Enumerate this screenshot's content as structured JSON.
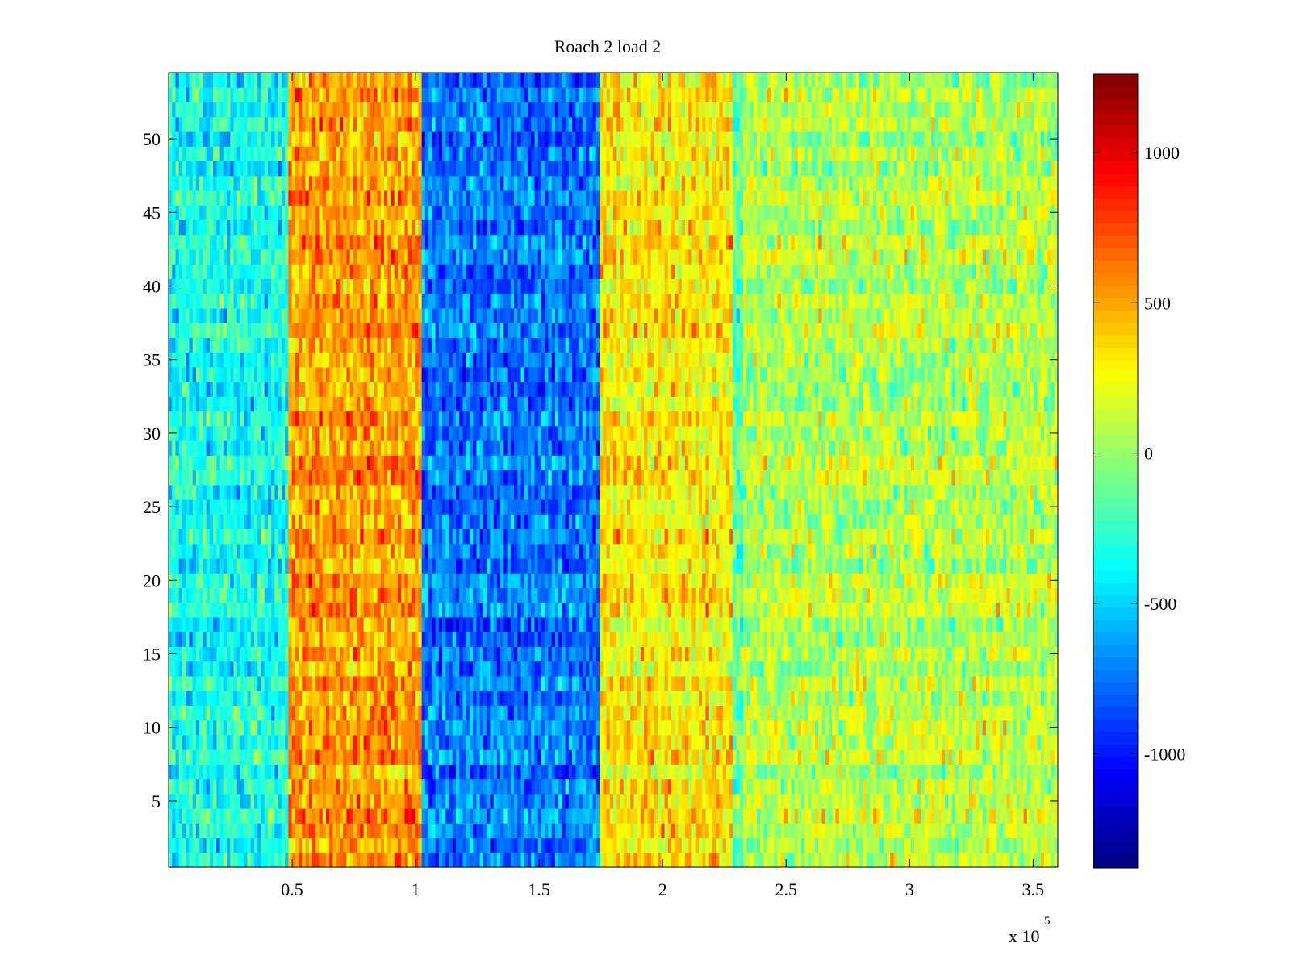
{
  "chart_data": {
    "type": "heatmap",
    "title": "Roach 2 load 2",
    "xlabel": "",
    "ylabel": "",
    "x_exponent_label": "x 10",
    "x_exponent_power": "5",
    "xlim": [
      0,
      360000
    ],
    "ylim": [
      0.5,
      54.5
    ],
    "x_ticks": [
      {
        "value": 50000,
        "label": "0.5"
      },
      {
        "value": 100000,
        "label": "1"
      },
      {
        "value": 150000,
        "label": "1.5"
      },
      {
        "value": 200000,
        "label": "2"
      },
      {
        "value": 250000,
        "label": "2.5"
      },
      {
        "value": 300000,
        "label": "3"
      },
      {
        "value": 350000,
        "label": "3.5"
      }
    ],
    "y_ticks": [
      {
        "value": 5,
        "label": "5"
      },
      {
        "value": 10,
        "label": "10"
      },
      {
        "value": 15,
        "label": "15"
      },
      {
        "value": 20,
        "label": "20"
      },
      {
        "value": 25,
        "label": "25"
      },
      {
        "value": 30,
        "label": "30"
      },
      {
        "value": 35,
        "label": "35"
      },
      {
        "value": 40,
        "label": "40"
      },
      {
        "value": 45,
        "label": "45"
      },
      {
        "value": 50,
        "label": "50"
      }
    ],
    "rows": 54,
    "colormap": "jet",
    "clim": [
      -1380,
      1260
    ],
    "colorbar": {
      "ticks": [
        {
          "value": 1000,
          "label": "1000"
        },
        {
          "value": 500,
          "label": "500"
        },
        {
          "value": 0,
          "label": "0"
        },
        {
          "value": -500,
          "label": "-500"
        },
        {
          "value": -1000,
          "label": "-1000"
        }
      ]
    },
    "bands": [
      {
        "x_start": 0,
        "x_end": 48000,
        "mean": -350
      },
      {
        "x_start": 48000,
        "x_end": 102000,
        "mean": 520
      },
      {
        "x_start": 102000,
        "x_end": 175000,
        "mean": -750
      },
      {
        "x_start": 175000,
        "x_end": 228000,
        "mean": 300
      },
      {
        "x_start": 228000,
        "x_end": 232000,
        "mean": -150
      },
      {
        "x_start": 232000,
        "x_end": 360000,
        "mean": 80
      }
    ],
    "grid": false
  }
}
